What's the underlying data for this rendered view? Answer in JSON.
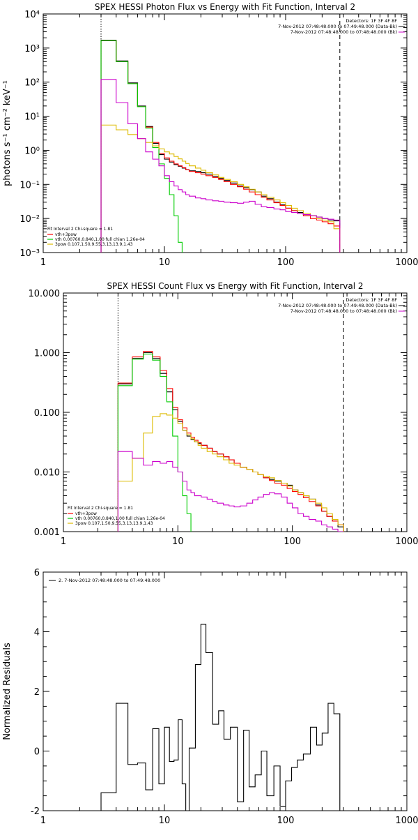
{
  "chart_data": [
    {
      "type": "line",
      "title": "SPEX HESSI Photon Flux vs Energy with Fit Function, Interval 2",
      "ylabel": "photons s⁻¹ cm⁻² keV⁻¹",
      "xlabel": "",
      "xscale": "log",
      "yscale": "log",
      "xlim": [
        1,
        1000
      ],
      "ylim": [
        0.001,
        10000
      ],
      "x_ticks": [
        "1",
        "10",
        "100",
        "1000"
      ],
      "y_ticks": [
        "10⁻³",
        "10⁻²",
        "10⁻¹",
        "10⁰",
        "10¹",
        "10²",
        "10³",
        "10⁴"
      ],
      "vlines": [
        {
          "x": 3,
          "style": "dotted"
        },
        {
          "x": 280,
          "style": "dashed"
        }
      ],
      "annotation_lines": [
        "Detectors: 1F 3F 4F 8F",
        "7-Nov-2012 07:48:48.000 to 07:49:48.000 (Data-Bk)",
        "7-Nov-2012 07:48:48.000 to 07:48:48.000 (Bk)"
      ],
      "annotation_colors": [
        "#000000",
        "#000000",
        "#cc00cc"
      ],
      "legend_header": "Fit Interval 2   Chi-square = 1.81",
      "legend": [
        {
          "label": "vth+3pow",
          "color": "#ff0000"
        },
        {
          "label": "vth 0.00760,0.840,1.00  full chian 1.26e-04",
          "color": "#00cc00"
        },
        {
          "label": "3pow 0.107,1.50,9.55,3.13,13.9,1.43",
          "color": "#ddbb00"
        }
      ],
      "edges": [
        3,
        4,
        5,
        6,
        7,
        8,
        9,
        10,
        11,
        12,
        13,
        14,
        15,
        16,
        18,
        20,
        22,
        25,
        28,
        31,
        35,
        40,
        45,
        50,
        56,
        63,
        70,
        80,
        90,
        100,
        112,
        125,
        140,
        160,
        180,
        200,
        224,
        250,
        280
      ],
      "series": [
        {
          "color": "#000000",
          "values": [
            1700,
            420,
            95,
            20,
            5,
            1.6,
            0.75,
            0.55,
            0.45,
            0.38,
            0.34,
            0.3,
            0.27,
            0.25,
            0.24,
            0.22,
            0.2,
            0.17,
            0.15,
            0.13,
            0.11,
            0.09,
            0.08,
            0.07,
            0.06,
            0.045,
            0.038,
            0.03,
            0.025,
            0.02,
            0.017,
            0.015,
            0.013,
            0.012,
            0.011,
            0.01,
            0.009,
            0.0085
          ]
        },
        {
          "color": "#ff0000",
          "values": [
            1650,
            400,
            90,
            19,
            4.8,
            1.7,
            0.8,
            0.6,
            0.48,
            0.4,
            0.35,
            0.31,
            0.27,
            0.24,
            0.22,
            0.2,
            0.18,
            0.16,
            0.14,
            0.12,
            0.1,
            0.085,
            0.072,
            0.06,
            0.05,
            0.042,
            0.035,
            0.029,
            0.024,
            0.02,
            0.017,
            0.014,
            0.012,
            0.01,
            0.009,
            0.008,
            0.007,
            0.006
          ]
        },
        {
          "color": "#00cc00",
          "values": [
            1650,
            400,
            90,
            19,
            4.5,
            1.2,
            0.4,
            0.15,
            0.05,
            0.012,
            0.002,
            0.0003
          ]
        },
        {
          "color": "#ddbb00",
          "values": [
            5.5,
            4,
            2.9,
            2.2,
            1.7,
            1.35,
            1.1,
            0.9,
            0.78,
            0.66,
            0.56,
            0.48,
            0.41,
            0.35,
            0.3,
            0.26,
            0.22,
            0.19,
            0.16,
            0.14,
            0.12,
            0.1,
            0.085,
            0.072,
            0.06,
            0.05,
            0.042,
            0.035,
            0.029,
            0.024,
            0.02,
            0.017,
            0.014,
            0.012,
            0.01,
            0.009,
            0.008,
            0.005
          ]
        },
        {
          "color": "#cc00cc",
          "values": [
            120,
            25,
            6,
            2.2,
            0.9,
            0.55,
            0.35,
            0.18,
            0.12,
            0.09,
            0.07,
            0.06,
            0.05,
            0.045,
            0.04,
            0.038,
            0.035,
            0.033,
            0.032,
            0.03,
            0.029,
            0.028,
            0.03,
            0.032,
            0.026,
            0.022,
            0.021,
            0.019,
            0.018,
            0.016,
            0.015,
            0.014,
            0.013,
            0.012,
            0.011,
            0.01,
            0.0095,
            0.009
          ]
        }
      ]
    },
    {
      "type": "line",
      "title": "SPEX HESSI Count Flux vs Energy with Fit Function, Interval 2",
      "ylabel": "",
      "xlabel": "",
      "xscale": "log",
      "yscale": "log",
      "xlim": [
        1,
        1000
      ],
      "ylim": [
        0.001,
        10
      ],
      "x_ticks": [
        "1",
        "10",
        "100",
        "1000"
      ],
      "y_ticks": [
        "0.001",
        "0.010",
        "0.100",
        "1.000",
        "10.000"
      ],
      "vlines": [
        {
          "x": 3,
          "style": "dotted"
        },
        {
          "x": 280,
          "style": "dashed"
        }
      ],
      "annotation_lines": [
        "Detectors: 1F 3F 4F 8F",
        "7-Nov-2012 07:48:48.000 to 07:49:48.000 (Data-Bk)",
        "7-Nov-2012 07:48:48.000 to 07:48:48.000 (Bk)"
      ],
      "annotation_colors": [
        "#000000",
        "#000000",
        "#cc00cc"
      ],
      "legend_header": "Fit Interval 2   Chi-square = 1.81",
      "legend": [
        {
          "label": "vth+3pow",
          "color": "#ff0000"
        },
        {
          "label": "vth 0.00760,0.840,1.00  full chian 1.26e-04",
          "color": "#00cc00"
        },
        {
          "label": "3pow 0.107,1.50,9.55,3.13,13.9,1.43",
          "color": "#ddbb00"
        }
      ],
      "edges": [
        3,
        4,
        5,
        6,
        7,
        8,
        9,
        10,
        11,
        12,
        13,
        14,
        15,
        16,
        18,
        20,
        22,
        25,
        28,
        31,
        35,
        40,
        45,
        50,
        56,
        63,
        70,
        80,
        90,
        100,
        112,
        125,
        140,
        160,
        180,
        200,
        224,
        250,
        280
      ],
      "series": [
        {
          "color": "#000000",
          "values": [
            0.3,
            0.8,
            1.0,
            0.8,
            0.45,
            0.22,
            0.11,
            0.07,
            0.05,
            0.04,
            0.035,
            0.032,
            0.03,
            0.028,
            0.025,
            0.022,
            0.02,
            0.018,
            0.016,
            0.014,
            0.012,
            0.011,
            0.01,
            0.009,
            0.008,
            0.0075,
            0.007,
            0.0065,
            0.006,
            0.005,
            0.0045,
            0.004,
            0.0035,
            0.0028,
            0.0022,
            0.0018,
            0.0015,
            0.0012
          ]
        },
        {
          "color": "#ff0000",
          "values": [
            0.31,
            0.85,
            1.05,
            0.85,
            0.5,
            0.25,
            0.12,
            0.075,
            0.055,
            0.045,
            0.038,
            0.034,
            0.031,
            0.028,
            0.025,
            0.022,
            0.02,
            0.018,
            0.016,
            0.014,
            0.012,
            0.011,
            0.01,
            0.009,
            0.008,
            0.0072,
            0.0065,
            0.006,
            0.0053,
            0.0047,
            0.0042,
            0.0037,
            0.0032,
            0.0027,
            0.0022,
            0.0018,
            0.0015,
            0.0013
          ]
        },
        {
          "color": "#00cc00",
          "values": [
            0.28,
            0.78,
            0.95,
            0.75,
            0.4,
            0.15,
            0.04,
            0.01,
            0.004,
            0.002,
            0.0009
          ]
        },
        {
          "color": "#ddbb00",
          "values": [
            0.007,
            0.017,
            0.045,
            0.085,
            0.095,
            0.09,
            0.08,
            0.065,
            0.05,
            0.042,
            0.036,
            0.032,
            0.028,
            0.025,
            0.022,
            0.02,
            0.018,
            0.016,
            0.014,
            0.013,
            0.012,
            0.011,
            0.01,
            0.009,
            0.0085,
            0.008,
            0.0072,
            0.0065,
            0.0058,
            0.005,
            0.0045,
            0.004,
            0.0035,
            0.003,
            0.0025,
            0.002,
            0.0016,
            0.0013
          ]
        },
        {
          "color": "#cc00cc",
          "values": [
            0.022,
            0.017,
            0.013,
            0.015,
            0.014,
            0.015,
            0.012,
            0.01,
            0.007,
            0.005,
            0.0045,
            0.004,
            0.004,
            0.0038,
            0.0035,
            0.0032,
            0.003,
            0.0028,
            0.0027,
            0.0026,
            0.0027,
            0.003,
            0.0034,
            0.0038,
            0.0042,
            0.0045,
            0.0043,
            0.0038,
            0.003,
            0.0025,
            0.002,
            0.0018,
            0.0016,
            0.0015,
            0.0013,
            0.0012,
            0.0011,
            0.001
          ]
        }
      ]
    },
    {
      "type": "line",
      "title": "",
      "ylabel": "Normalized Residuals",
      "xlabel": "",
      "xscale": "log",
      "yscale": "linear",
      "xlim": [
        1,
        1000
      ],
      "ylim": [
        -2,
        6
      ],
      "x_ticks": [
        "1",
        "10",
        "100",
        "1000"
      ],
      "y_ticks": [
        "-2",
        "0",
        "2",
        "4",
        "6"
      ],
      "y_tick_values": [
        -2,
        0,
        2,
        4,
        6
      ],
      "legend_header": "",
      "legend": [
        {
          "label": "2.  7-Nov-2012 07:48:48.000 to 07:49:48.000",
          "color": "#000000"
        }
      ],
      "edges": [
        3,
        4,
        5,
        6,
        7,
        8,
        9,
        10,
        11,
        12,
        13,
        14,
        15,
        16,
        18,
        20,
        22,
        25,
        28,
        31,
        35,
        40,
        45,
        50,
        56,
        63,
        70,
        80,
        90,
        100,
        112,
        125,
        140,
        160,
        180,
        200,
        224,
        250,
        280
      ],
      "series": [
        {
          "color": "#000000",
          "values": [
            -1.4,
            1.6,
            -0.45,
            -0.4,
            -1.3,
            0.75,
            -1.1,
            0.8,
            -0.35,
            -0.3,
            1.05,
            -1.1,
            -2.05,
            0.1,
            2.9,
            4.25,
            3.3,
            0.9,
            1.35,
            0.4,
            0.8,
            -1.7,
            0.7,
            -1.2,
            -0.8,
            0.0,
            -1.5,
            -0.5,
            -1.85,
            -1.0,
            -0.55,
            -0.3,
            -0.1,
            0.8,
            0.2,
            0.6,
            1.6,
            1.25
          ]
        }
      ]
    }
  ]
}
